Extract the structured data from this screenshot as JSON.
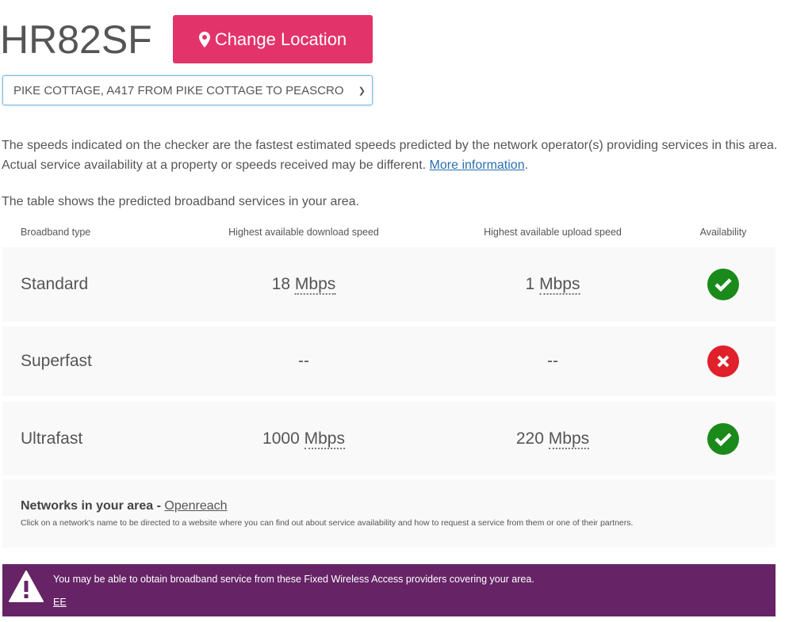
{
  "header": {
    "postcode": "HR82SF",
    "change_location": "Change Location"
  },
  "address_select": {
    "value": "PIKE COTTAGE, A417 FROM PIKE COTTAGE TO PEASCRO"
  },
  "intro": {
    "text": "The speeds indicated on the checker are the fastest estimated speeds predicted by the network operator(s) providing services in this area. Actual service availability at a property or speeds received may be different.",
    "link": "More information",
    "end": "."
  },
  "table_intro": "The table shows the predicted broadband services in your area.",
  "table": {
    "headers": [
      "Broadband type",
      "Highest available download speed",
      "Highest available upload speed",
      "Availability"
    ],
    "rows": [
      {
        "type": "Standard",
        "download": "18",
        "download_unit": "Mbps",
        "upload": "1",
        "upload_unit": "Mbps",
        "available": true
      },
      {
        "type": "Superfast",
        "download": "--",
        "download_unit": "",
        "upload": "--",
        "upload_unit": "",
        "available": false
      },
      {
        "type": "Ultrafast",
        "download": "1000",
        "download_unit": "Mbps",
        "upload": "220",
        "upload_unit": "Mbps",
        "available": true
      }
    ]
  },
  "networks": {
    "label": "Networks in your area -",
    "link": "Openreach",
    "note": "Click on a network's name to be directed to a website where you can find out about service availability and how to request a service from them or one of their partners."
  },
  "banner": {
    "text": "You may be able to obtain broadband service from these Fixed Wireless Access providers covering your area.",
    "link": "EE"
  },
  "colors": {
    "accent": "#e2336a",
    "available": "#1a8a1a",
    "unavailable": "#e0202a",
    "banner": "#662466"
  }
}
